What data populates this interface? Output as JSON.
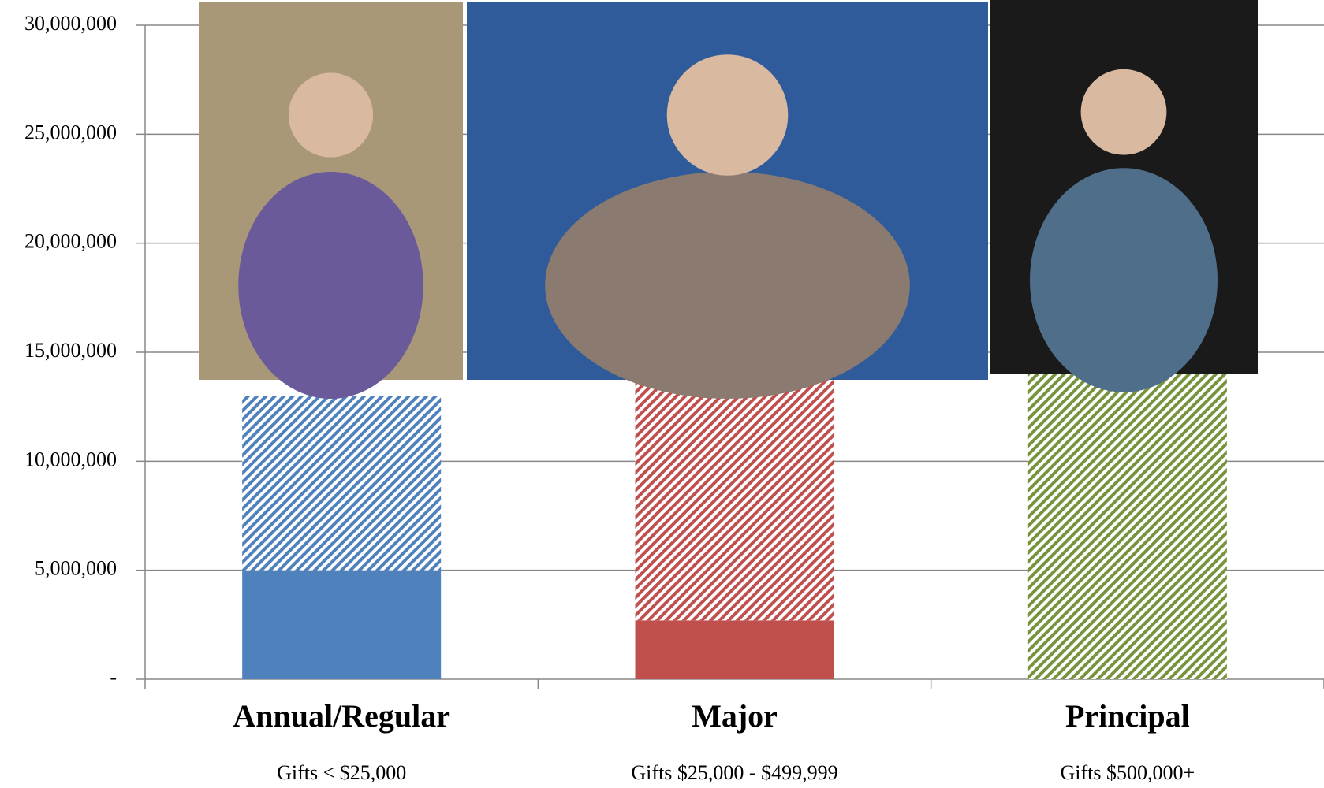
{
  "chart_data": {
    "type": "stacked_bar",
    "categories": [
      "Annual/Regular",
      "Major",
      "Principal"
    ],
    "category_notes": [
      "Gifts < $25,000",
      "Gifts $25,000 - $499,999",
      "Gifts $500,000+"
    ],
    "series": [
      {
        "style": "solid",
        "colors": [
          "#4f81bd",
          "#c0504d",
          "#77933c"
        ],
        "values": [
          5000000,
          2700000,
          0
        ]
      },
      {
        "style": "hatched",
        "colors": [
          "#4f81bd",
          "#c0504d",
          "#77933c"
        ],
        "values": [
          8000000,
          11100000,
          14000000
        ]
      }
    ],
    "ylim": [
      0,
      30000000
    ],
    "yticks": [
      {
        "value": 0,
        "label": "-"
      },
      {
        "value": 5000000,
        "label": "5,000,000"
      },
      {
        "value": 10000000,
        "label": "10,000,000"
      },
      {
        "value": 15000000,
        "label": "15,000,000"
      },
      {
        "value": 20000000,
        "label": "20,000,000"
      },
      {
        "value": 25000000,
        "label": "25,000,000"
      },
      {
        "value": 30000000,
        "label": "30,000,000"
      }
    ],
    "grid": true
  }
}
